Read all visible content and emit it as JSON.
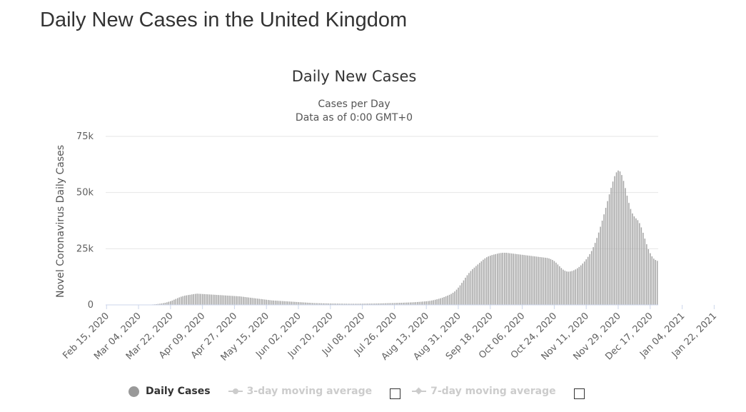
{
  "page": {
    "title": "Daily New Cases in the United Kingdom"
  },
  "colors": {
    "bar": "#a6a6a6",
    "grid": "#e6e6e6",
    "legend_active": "#333333",
    "legend_inactive": "#cccccc"
  },
  "legend": {
    "daily": "Daily Cases",
    "ma3": "3-day moving average",
    "ma7": "7-day moving average"
  },
  "chart_data": {
    "type": "bar",
    "title": "Daily New Cases",
    "subtitle": "Cases per Day",
    "subtitle2": "Data as of 0:00 GMT+0",
    "ylabel": "Novel Coronavirus Daily Cases",
    "xlabel": "",
    "ylim": [
      0,
      75000
    ],
    "y_ticks": [
      0,
      25000,
      50000,
      75000
    ],
    "y_tick_labels": [
      "0",
      "25k",
      "50k",
      "75k"
    ],
    "x_start_date": "2020-02-15",
    "x_end_date": "2021-02-02",
    "x_tick_labels": [
      "Feb 15, 2020",
      "Mar 04, 2020",
      "Mar 22, 2020",
      "Apr 09, 2020",
      "Apr 27, 2020",
      "May 15, 2020",
      "Jun 02, 2020",
      "Jun 20, 2020",
      "Jul 08, 2020",
      "Jul 26, 2020",
      "Aug 13, 2020",
      "Aug 31, 2020",
      "Sep 18, 2020",
      "Oct 06, 2020",
      "Oct 24, 2020",
      "Nov 11, 2020",
      "Nov 29, 2020",
      "Dec 17, 2020",
      "Jan 04, 2021",
      "Jan 22, 2021"
    ],
    "grid": true,
    "legend_position": "bottom",
    "series": [
      {
        "name": "Daily Cases",
        "values": [
          0,
          0,
          0,
          0,
          0,
          0,
          0,
          0,
          0,
          0,
          0,
          0,
          0,
          0,
          0,
          0,
          0,
          0,
          0,
          0,
          30,
          50,
          60,
          80,
          120,
          150,
          200,
          260,
          330,
          420,
          520,
          640,
          780,
          950,
          1150,
          1400,
          1650,
          1950,
          2300,
          2650,
          3000,
          3350,
          3650,
          3900,
          4100,
          4250,
          4400,
          4500,
          4650,
          4800,
          4900,
          5000,
          4950,
          4900,
          4850,
          4800,
          4750,
          4700,
          4650,
          4600,
          4550,
          4500,
          4450,
          4400,
          4350,
          4300,
          4250,
          4200,
          4150,
          4100,
          4050,
          4000,
          3950,
          3900,
          3850,
          3800,
          3700,
          3600,
          3500,
          3400,
          3300,
          3200,
          3100,
          3000,
          2900,
          2800,
          2700,
          2600,
          2500,
          2400,
          2300,
          2200,
          2100,
          2000,
          1950,
          1900,
          1850,
          1800,
          1750,
          1700,
          1650,
          1600,
          1550,
          1500,
          1450,
          1400,
          1350,
          1300,
          1250,
          1200,
          1150,
          1100,
          1050,
          1000,
          950,
          900,
          850,
          800,
          780,
          760,
          740,
          720,
          700,
          680,
          660,
          640,
          620,
          600,
          590,
          580,
          570,
          560,
          550,
          540,
          530,
          520,
          510,
          500,
          500,
          500,
          500,
          500,
          510,
          520,
          530,
          540,
          550,
          560,
          570,
          580,
          590,
          600,
          620,
          640,
          660,
          680,
          700,
          720,
          740,
          760,
          780,
          800,
          830,
          860,
          890,
          920,
          950,
          980,
          1010,
          1040,
          1070,
          1100,
          1140,
          1180,
          1230,
          1280,
          1340,
          1400,
          1470,
          1540,
          1620,
          1700,
          1800,
          1950,
          2100,
          2300,
          2500,
          2700,
          2950,
          3200,
          3500,
          3800,
          4150,
          4500,
          4900,
          5400,
          6000,
          6800,
          7700,
          8700,
          9800,
          10900,
          12100,
          13200,
          14200,
          15100,
          15900,
          16600,
          17300,
          18000,
          18700,
          19400,
          20100,
          20700,
          21200,
          21600,
          21900,
          22200,
          22400,
          22600,
          22800,
          23000,
          23100,
          23200,
          23200,
          23200,
          23100,
          23000,
          22900,
          22800,
          22700,
          22600,
          22500,
          22400,
          22300,
          22200,
          22100,
          22000,
          21900,
          21800,
          21700,
          21600,
          21500,
          21400,
          21300,
          21200,
          21100,
          21000,
          20900,
          20700,
          20400,
          20000,
          19500,
          18800,
          18000,
          17200,
          16400,
          15700,
          15200,
          14900,
          14800,
          14900,
          15100,
          15400,
          15800,
          16300,
          16900,
          17600,
          18400,
          19300,
          20300,
          21400,
          22600,
          24000,
          25700,
          27600,
          29800,
          32200,
          34800,
          37500,
          40300,
          43200,
          46200,
          49200,
          52100,
          54900,
          57300,
          59000,
          59800,
          59400,
          57800,
          55200,
          52000,
          48600,
          45400,
          42700,
          40700,
          39400,
          38500,
          37700,
          36400,
          34500,
          32100,
          29500,
          27000,
          24800,
          23000,
          21600,
          20600,
          20000,
          19600
        ],
        "color": "#a6a6a6"
      },
      {
        "name": "3-day moving average",
        "values": []
      },
      {
        "name": "7-day moving average",
        "values": []
      }
    ]
  }
}
